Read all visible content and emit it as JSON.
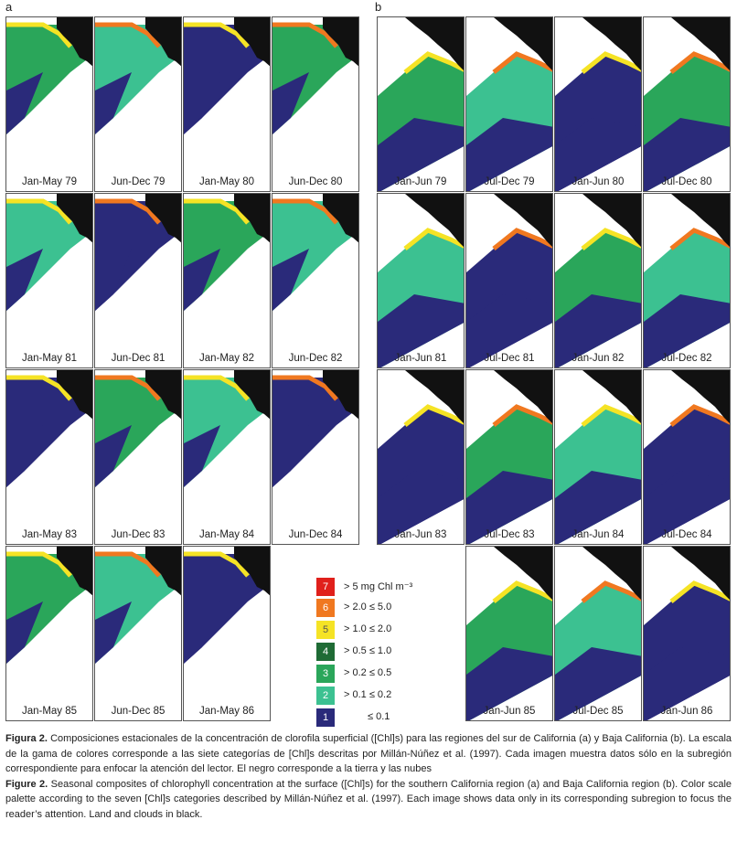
{
  "panel_a": {
    "letter": "a",
    "labels": [
      "Jan-May 79",
      "Jun-Dec 79",
      "Jan-May 80",
      "Jun-Dec 80",
      "Jan-May 81",
      "Jun-Dec 81",
      "Jan-May 82",
      "Jun-Dec 82",
      "Jan-May 83",
      "Jun-Dec 83",
      "Jan-May 84",
      "Jun-Dec 84",
      "Jan-May 85",
      "Jun-Dec 85",
      "Jan-May 86"
    ]
  },
  "panel_b": {
    "letter": "b",
    "labels": [
      "Jan-Jun 79",
      "Jul-Dec 79",
      "Jan-Jun 80",
      "Jul-Dec 80",
      "Jan-Jun 81",
      "Jul-Dec 81",
      "Jan-Jun 82",
      "Jul-Dec 82",
      "Jan-Jun 83",
      "Jul-Dec 83",
      "Jan-Jun 84",
      "Jul-Dec 84",
      "Jan-Jun 85",
      "Jul-Dec 85",
      "Jan-Jun 86"
    ]
  },
  "legend": [
    {
      "num": "7",
      "text": "> 5 mg Chl m⁻³",
      "color": "#e0201b"
    },
    {
      "num": "6",
      "text": "> 2.0 ≤ 5.0",
      "color": "#f07820"
    },
    {
      "num": "5",
      "text": "> 1.0 ≤ 2.0",
      "color": "#f5e325"
    },
    {
      "num": "4",
      "text": "> 0.5 ≤ 1.0",
      "color": "#1f6b35"
    },
    {
      "num": "3",
      "text": "> 0.2 ≤ 0.5",
      "color": "#2aa65a"
    },
    {
      "num": "2",
      "text": "> 0.1 ≤ 0.2",
      "color": "#3cc191"
    },
    {
      "num": "1",
      "text": "≤ 0.1",
      "color": "#2a2a7a"
    }
  ],
  "caption": {
    "es_label": "Figura 2.",
    "es_text": " Composiciones estacionales de la concentración de clorofila superficial ([Chl]s) para las regiones del sur de California (a) y Baja California (b). La escala de la gama de colores corresponde a las siete categorías de [Chl]s descritas por Millán-Núñez et al. (1997). Cada imagen muestra datos sólo en la subregión correspondiente para enfocar la atención del lector. El negro corresponde a la tierra y las nubes",
    "en_label": "Figure 2.",
    "en_text": " Seasonal composites of chlorophyll concentration at the surface ([Chl]s) for the southern California region (a) and Baja California region (b). Color scale palette according to the seven [Chl]s categories described by Millán-Núñez et al. (1997). Each image shows data only in its corresponding subregion to focus the reader’s attention. Land and clouds in black."
  }
}
